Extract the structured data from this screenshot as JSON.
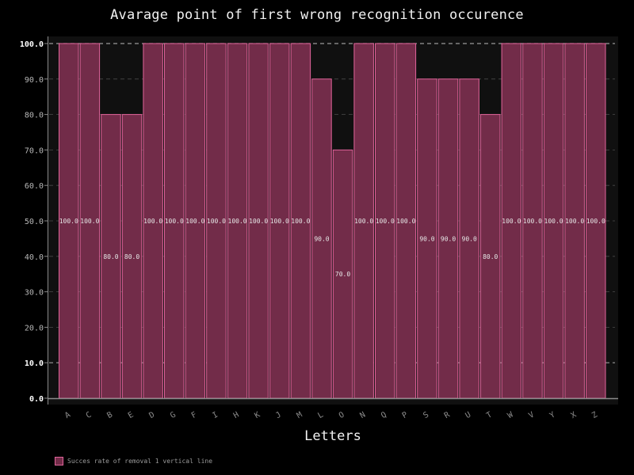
{
  "chart_data": {
    "type": "bar",
    "title": "Avarage point of first wrong recognition occurence",
    "xlabel": "Letters",
    "ylabel": "",
    "categories": [
      "A",
      "C",
      "B",
      "E",
      "D",
      "G",
      "F",
      "I",
      "H",
      "K",
      "J",
      "M",
      "L",
      "O",
      "N",
      "Q",
      "P",
      "S",
      "R",
      "U",
      "T",
      "W",
      "V",
      "Y",
      "X",
      "Z"
    ],
    "series": [
      {
        "name": "Succes rate of removal 1 vertical line",
        "values": [
          100,
          100,
          80,
          80,
          100,
          100,
          100,
          100,
          100,
          100,
          100,
          100,
          90,
          70,
          100,
          100,
          100,
          90,
          90,
          90,
          80,
          100,
          100,
          100,
          100,
          100
        ],
        "labels": [
          "100.0",
          "100.0",
          "80.0",
          "80.0",
          "100.0",
          "100.0",
          "100.0",
          "100.0",
          "100.0",
          "100.0",
          "100.0",
          "100.0",
          "90.0",
          "70.0",
          "100.0",
          "100.0",
          "100.0",
          "90.0",
          "90.0",
          "90.0",
          "80.0",
          "100.0",
          "100.0",
          "100.0",
          "100.0",
          "100.0"
        ]
      }
    ],
    "yticks": [
      "0.0",
      "10.0",
      "20.0",
      "30.0",
      "40.0",
      "50.0",
      "60.0",
      "70.0",
      "80.0",
      "90.0",
      "100.0"
    ],
    "ylim": [
      0,
      100
    ],
    "grid": true,
    "legend_position": "bottom-left",
    "colors": {
      "bar_fill": "#722c49",
      "bar_edge": "#e0649a",
      "plot_bg": "#101010",
      "page_bg": "#000000"
    }
  }
}
